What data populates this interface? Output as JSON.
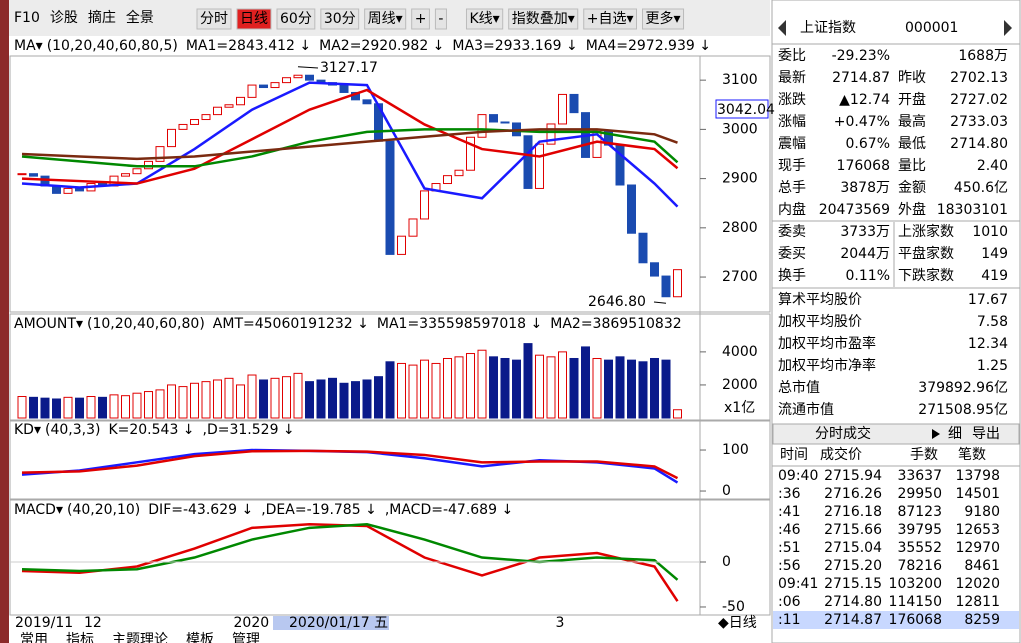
{
  "toolbar": {
    "left": [
      "F10",
      "诊股",
      "摘庄",
      "全景"
    ],
    "buttons": [
      "分时",
      "日线",
      "60分",
      "30分",
      "周线▾",
      "+",
      "-",
      "K线▾",
      "指数叠加▾",
      "+自选▾",
      "更多▾"
    ],
    "active_index": 1
  },
  "kline": {
    "indicator": "MA▾",
    "params": "(10,20,40,60,80,5)",
    "legend": [
      {
        "text": "MA1=2843.412 ↓",
        "color": "#1a1aff"
      },
      {
        "text": "MA2=2920.982 ↓",
        "color": "#e00000"
      },
      {
        "text": "MA3=2933.169 ↓",
        "color": "#008800"
      },
      {
        "text": "MA4=2972.939 ↓",
        "color": "#7a2a10"
      }
    ],
    "ylim": [
      2629,
      3145
    ],
    "yticks": [
      2700,
      2800,
      2900,
      3000,
      3100
    ],
    "cursor_label": "3042.04",
    "closes": [
      2910,
      2905,
      2885,
      2870,
      2880,
      2875,
      2890,
      2885,
      2905,
      2910,
      2920,
      2935,
      2965,
      3000,
      3010,
      3020,
      3030,
      3045,
      3050,
      3065,
      3090,
      3085,
      3095,
      3105,
      3110,
      3100,
      3095,
      3090,
      3075,
      3060,
      3052,
      2976,
      2746,
      2783,
      2818,
      2875,
      2890,
      2906,
      2917,
      2984,
      3030,
      3015,
      3013,
      2987,
      2880,
      2970,
      3011,
      3071,
      3034,
      2943,
      2996,
      2968,
      2887,
      2789,
      2729,
      2702,
      2660,
      2715
    ],
    "x": [
      0,
      5,
      10,
      15,
      20,
      25,
      30,
      35,
      40,
      45,
      50,
      55,
      57
    ],
    "series": [
      {
        "name": "MA1",
        "color": "#1a1aff",
        "values": [
          2890,
          2882,
          2890,
          2960,
          3040,
          3095,
          3090,
          2880,
          2860,
          2975,
          2990,
          2890,
          2843
        ]
      },
      {
        "name": "MA2",
        "color": "#e00000",
        "values": [
          2900,
          2895,
          2890,
          2920,
          2980,
          3040,
          3080,
          3010,
          2960,
          2945,
          2975,
          2960,
          2921
        ]
      },
      {
        "name": "MA3",
        "color": "#008800",
        "values": [
          2945,
          2935,
          2925,
          2925,
          2945,
          2975,
          2995,
          3000,
          3000,
          2995,
          2995,
          2975,
          2933
        ]
      },
      {
        "name": "MA4",
        "color": "#7a2a10",
        "values": [
          2950,
          2945,
          2940,
          2945,
          2955,
          2965,
          2975,
          2985,
          2995,
          3000,
          3000,
          2990,
          2973
        ]
      }
    ],
    "annotations": [
      {
        "text": "3127.17",
        "value": 3127.17,
        "index": 24
      },
      {
        "text": "2646.80",
        "value": 2646.8,
        "index": 56
      }
    ]
  },
  "amount": {
    "indicator": "AMOUNT▾",
    "params": "(10,20,40,60,80)",
    "legend": [
      {
        "text": "AMT=45060191232 ↓",
        "color": "#4a80c0"
      },
      {
        "text": "MA1=335598597018 ↓",
        "color": "#1a1aff"
      },
      {
        "text": "MA2=3869510832",
        "color": "#e00000"
      }
    ],
    "ylim": [
      0,
      4900
    ],
    "yticks": [
      2000,
      4000
    ],
    "unit": "x1亿",
    "values": [
      1300,
      1250,
      1200,
      1150,
      1250,
      1200,
      1300,
      1250,
      1400,
      1350,
      1500,
      1600,
      1700,
      2000,
      1900,
      2100,
      2200,
      2300,
      2400,
      2000,
      2600,
      2300,
      2400,
      2500,
      2700,
      2200,
      2300,
      2400,
      2100,
      2200,
      2300,
      2500,
      3400,
      3300,
      3200,
      3500,
      3300,
      3600,
      3700,
      3900,
      4100,
      3700,
      3600,
      3500,
      4500,
      3800,
      3700,
      4000,
      3600,
      4300,
      3600,
      3500,
      3700,
      3500,
      3400,
      3600,
      3500,
      500
    ]
  },
  "kd": {
    "indicator": "KD▾",
    "params": "(40,3,3)",
    "legend": [
      {
        "text": "K=20.543 ↓",
        "color": "#1a1aff"
      },
      {
        "text": ",D=31.529 ↓",
        "color": "#e00000"
      }
    ],
    "ylim": [
      -17,
      122
    ],
    "yticks": [
      0,
      100
    ],
    "x": [
      0,
      5,
      10,
      15,
      20,
      25,
      30,
      35,
      40,
      45,
      50,
      55,
      57
    ],
    "series": [
      {
        "name": "K",
        "color": "#1a1aff",
        "values": [
          40,
          50,
          70,
          90,
          100,
          98,
          95,
          80,
          60,
          75,
          70,
          55,
          20.5
        ]
      },
      {
        "name": "D",
        "color": "#e00000",
        "values": [
          45,
          48,
          62,
          85,
          97,
          98,
          96,
          88,
          70,
          72,
          72,
          60,
          31.5
        ]
      }
    ]
  },
  "macd": {
    "indicator": "MACD▾",
    "params": "(40,20,10)",
    "legend": [
      {
        "text": "DIF=-43.629 ↓",
        "color": "#e00000"
      },
      {
        "text": ",DEA=-19.785 ↓",
        "color": "#008800"
      },
      {
        "text": ",MACD=-47.689 ↓",
        "color": "#1a1aff"
      }
    ],
    "ylim": [
      -56.7,
      45.6
    ],
    "yticks": [
      0,
      -50
    ],
    "x": [
      0,
      5,
      10,
      15,
      20,
      25,
      30,
      35,
      40,
      45,
      50,
      55,
      57
    ],
    "series": [
      {
        "name": "DIF",
        "color": "#e00000",
        "values": [
          -10,
          -12,
          -5,
          15,
          38,
          42,
          40,
          5,
          -15,
          5,
          10,
          -5,
          -43.6
        ]
      },
      {
        "name": "DEA",
        "color": "#008800",
        "values": [
          -8,
          -10,
          -8,
          5,
          25,
          38,
          42,
          25,
          5,
          0,
          5,
          2,
          -19.8
        ]
      }
    ]
  },
  "dates": [
    {
      "text": "2019/11",
      "index": 0
    },
    {
      "text": "12",
      "index": 6
    },
    {
      "text": "2020",
      "index": 19
    },
    {
      "text": "3",
      "index": 47
    }
  ],
  "cursor_date": {
    "text": "2020/01/17 五",
    "index": 22
  },
  "period": "◆日线",
  "bottom_tabs": [
    "常用",
    "指标",
    "主题理论",
    "模板",
    "管理"
  ],
  "quote": {
    "name": "上证指数",
    "code": "000001",
    "rows": [
      [
        "委比",
        "-29.23%",
        "",
        "1688万"
      ],
      [
        "最新",
        "2714.87",
        "昨收",
        "2702.13"
      ],
      [
        "涨跌",
        "▲12.74",
        "开盘",
        "2727.02"
      ],
      [
        "涨幅",
        "+0.47%",
        "最高",
        "2733.03"
      ],
      [
        "震幅",
        "0.67%",
        "最低",
        "2714.80"
      ],
      [
        "现手",
        "176068",
        "量比",
        "2.40"
      ],
      [
        "总手",
        "3878万",
        "金额",
        "450.6亿"
      ],
      [
        "内盘",
        "20473569",
        "外盘",
        "18303101"
      ],
      [
        "委卖",
        "3733万",
        "上涨家数",
        "1010"
      ],
      [
        "委买",
        "2044万",
        "平盘家数",
        "149"
      ],
      [
        "换手",
        "0.11%",
        "下跌家数",
        "419"
      ]
    ],
    "stats": [
      [
        "算术平均股价",
        "17.67"
      ],
      [
        "加权平均股价",
        "7.58"
      ],
      [
        "加权平均市盈率",
        "12.34"
      ],
      [
        "加权平均市净率",
        "1.25"
      ],
      [
        "总市值",
        "379892.96亿"
      ],
      [
        "流通市值",
        "271508.95亿"
      ]
    ]
  },
  "trades": {
    "title": "分时成交",
    "buttons": [
      "细",
      "导出"
    ],
    "columns": [
      "时间",
      "成交价",
      "手数",
      "笔数"
    ],
    "rows": [
      [
        "09:40",
        "2715.94",
        "33637",
        "13798"
      ],
      [
        ":36",
        "2716.26",
        "29950",
        "14501"
      ],
      [
        ":41",
        "2716.18",
        "87123",
        "9180"
      ],
      [
        ":46",
        "2715.66",
        "39795",
        "12653"
      ],
      [
        ":51",
        "2715.04",
        "35552",
        "12970"
      ],
      [
        ":56",
        "2715.20",
        "78216",
        "8461"
      ],
      [
        "09:41",
        "2715.15",
        "103200",
        "12020"
      ],
      [
        ":06",
        "2714.80",
        "114150",
        "12811"
      ],
      [
        ":11",
        "2714.87",
        "176068",
        "8259"
      ]
    ]
  }
}
